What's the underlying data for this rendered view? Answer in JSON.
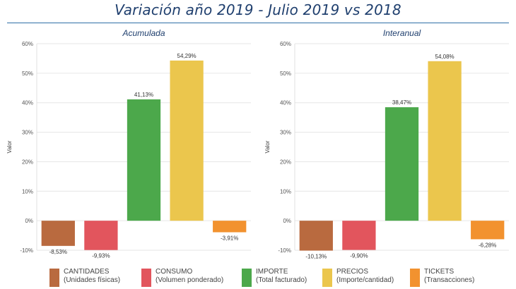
{
  "title": "Variación año 2019 - Julio 2019 vs 2018",
  "colors": {
    "title": "#1f3f6e",
    "cantidades": "#b96a3f",
    "consumo": "#e2555d",
    "importe": "#4ca84b",
    "precios": "#ebc64d",
    "tickets": "#f2922f"
  },
  "legend": [
    {
      "line1": "CANTIDADES",
      "line2": "(Unidades físicas)",
      "color": "#b96a3f"
    },
    {
      "line1": "CONSUMO",
      "line2": "(Volumen ponderado)",
      "color": "#e2555d"
    },
    {
      "line1": "IMPORTE",
      "line2": "(Total facturado)",
      "color": "#4ca84b"
    },
    {
      "line1": "PRECIOS",
      "line2": "(Importe/cantidad)",
      "color": "#ebc64d"
    },
    {
      "line1": "TICKETS",
      "line2": "(Transacciones)",
      "color": "#f2922f"
    }
  ],
  "chart_data": [
    {
      "type": "bar",
      "title": "Acumulada",
      "ylabel": "Valor",
      "ylim": [
        -10,
        60
      ],
      "yticks": [
        "60%",
        "50%",
        "40%",
        "30%",
        "20%",
        "10%",
        "0%",
        "-10%"
      ],
      "categories": [
        "CANTIDADES",
        "CONSUMO",
        "IMPORTE",
        "PRECIOS",
        "TICKETS"
      ],
      "values": [
        -8.53,
        -9.93,
        41.13,
        54.29,
        -3.91
      ],
      "labels": [
        "-8,53%",
        "-9,93%",
        "41,13%",
        "54,29%",
        "-3,91%"
      ],
      "legend": "bottom"
    },
    {
      "type": "bar",
      "title": "Interanual",
      "ylabel": "Valor",
      "ylim": [
        -10,
        60
      ],
      "yticks": [
        "60%",
        "50%",
        "40%",
        "30%",
        "20%",
        "10%",
        "0%",
        "-10%"
      ],
      "categories": [
        "CANTIDADES",
        "CONSUMO",
        "IMPORTE",
        "PRECIOS",
        "TICKETS"
      ],
      "values": [
        -10.13,
        -9.9,
        38.47,
        54.08,
        -6.28
      ],
      "labels": [
        "-10,13%",
        "-9,90%",
        "38,47%",
        "54,08%",
        "-6,28%"
      ],
      "legend": "bottom"
    }
  ]
}
